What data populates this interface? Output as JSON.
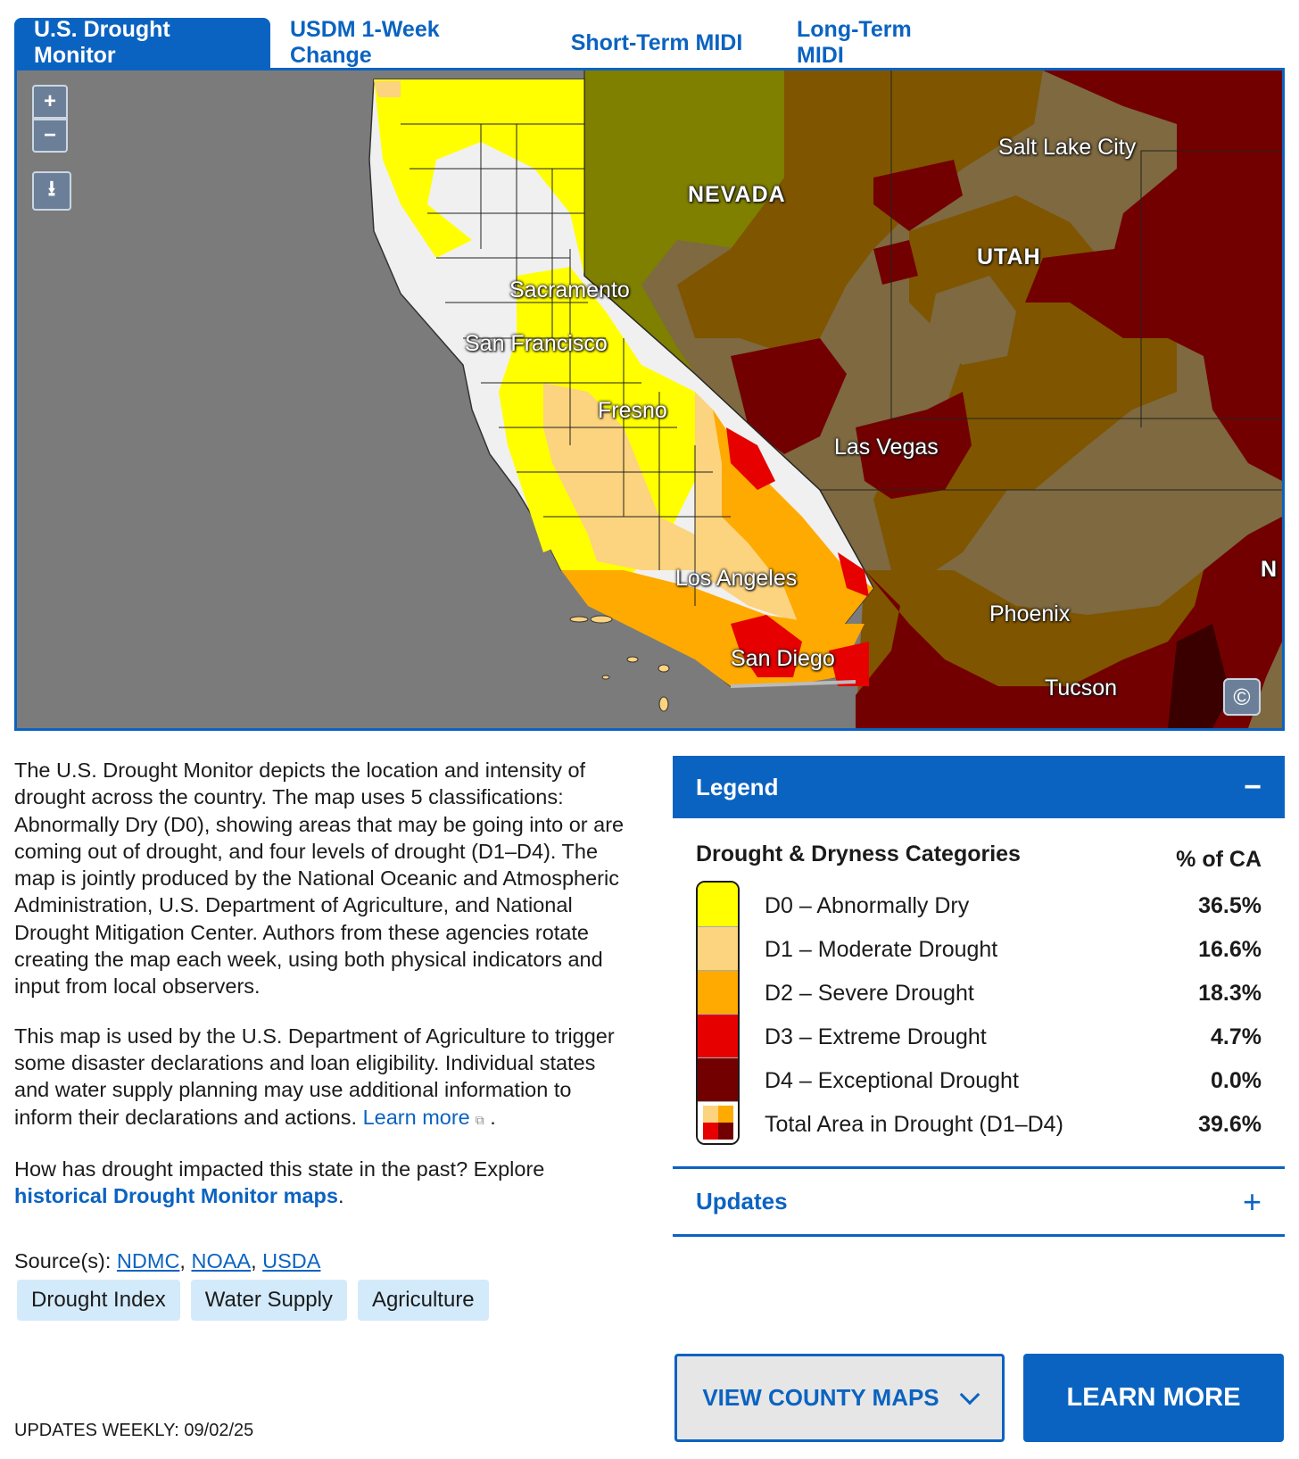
{
  "tabs": [
    {
      "label": "U.S. Drought Monitor",
      "active": true
    },
    {
      "label": "USDM 1-Week Change",
      "active": false
    },
    {
      "label": "Short-Term MIDI",
      "active": false
    },
    {
      "label": "Long-Term MIDI",
      "active": false
    }
  ],
  "map": {
    "controls": {
      "zoom_in": "+",
      "zoom_out": "−",
      "download_icon": "download-icon",
      "copyright": "©"
    },
    "state_labels": {
      "nevada": "NEVADA",
      "utah": "UTAH",
      "new_mexico_partial": "N"
    },
    "city_labels": {
      "salt_lake_city": "Salt Lake City",
      "sacramento": "Sacramento",
      "san_francisco": "San Francisco",
      "fresno": "Fresno",
      "las_vegas": "Las Vegas",
      "los_angeles": "Los Angeles",
      "phoenix": "Phoenix",
      "san_diego": "San Diego",
      "tucson": "Tucson"
    },
    "colors": {
      "water": "#7b7b7b",
      "none": "#f0f0f0",
      "d0": "#ffff00",
      "d1": "#fcd37f",
      "d2": "#ffaa00",
      "d3": "#e60000",
      "d4": "#730000",
      "outside_dim_d0": "#7f7f00",
      "outside_dim_d1": "#7e6940",
      "outside_dim_d2": "#7f5500",
      "outside_dim_d3": "#730000",
      "outside_dim_d4": "#3a0000"
    }
  },
  "description": {
    "p1": "The U.S. Drought Monitor depicts the location and intensity of drought across the country. The map uses 5 classifications: Abnormally Dry (D0), showing areas that may be going into or are coming out of drought, and four levels of drought (D1–D4). The map is jointly produced by the National Oceanic and Atmospheric Administration,  U.S. Department of Agriculture, and National Drought Mitigation Center. Authors from these agencies rotate creating the map each week, using both physical indicators and  input from local observers.",
    "p2": "This map is used by the U.S. Department of Agriculture to trigger some disaster declarations and loan eligibility. Individual states and water supply planning may use additional information to inform their declarations and actions.",
    "learn_more": "Learn more",
    "p2_end": ".",
    "p3": "How has drought impacted this state in the past? Explore",
    "historical_link": "historical Drought Monitor maps",
    "p3_end": "."
  },
  "sources": {
    "label": "Source(s):",
    "links": [
      "NDMC",
      "NOAA",
      "USDA"
    ],
    "sep": ","
  },
  "tags": [
    "Drought Index",
    "Water Supply",
    "Agriculture"
  ],
  "updates_weekly": "UPDATES WEEKLY: 09/02/25",
  "legend": {
    "title": "Legend",
    "toggle": "−",
    "categories_title": "Drought & Dryness Categories",
    "pct_title": "% of CA",
    "rows": [
      {
        "label": "D0 – Abnormally Dry",
        "pct": "36.5%",
        "color": "#ffff00"
      },
      {
        "label": "D1 – Moderate Drought",
        "pct": "16.6%",
        "color": "#fcd37f"
      },
      {
        "label": "D2 – Severe Drought",
        "pct": "18.3%",
        "color": "#ffaa00"
      },
      {
        "label": "D3 – Extreme Drought",
        "pct": "4.7%",
        "color": "#e60000"
      },
      {
        "label": "D4 – Exceptional Drought",
        "pct": "0.0%",
        "color": "#730000"
      },
      {
        "label": "Total Area in Drought (D1–D4)",
        "pct": "39.6%",
        "color": "mixed"
      }
    ]
  },
  "updates": {
    "title": "Updates",
    "toggle": "+"
  },
  "buttons": {
    "county_maps": "VIEW COUNTY MAPS",
    "learn_more": "LEARN MORE"
  }
}
